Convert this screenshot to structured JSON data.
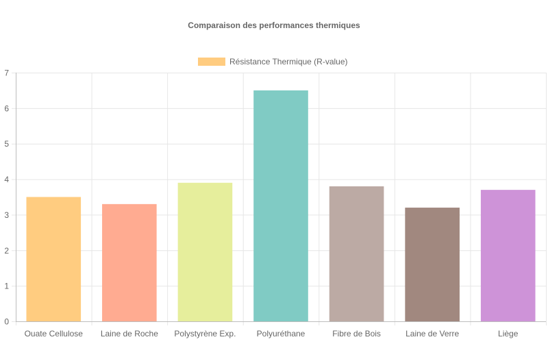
{
  "chart_data": {
    "type": "bar",
    "title": "Comparaison des performances thermiques",
    "categories": [
      "Ouate Cellulose",
      "Laine de Roche",
      "Polystyrène Exp.",
      "Polyuréthane",
      "Fibre de Bois",
      "Laine de Verre",
      "Liège"
    ],
    "series": [
      {
        "name": "Résistance Thermique (R-value)",
        "values": [
          3.5,
          3.3,
          3.9,
          6.5,
          3.8,
          3.2,
          3.7
        ]
      }
    ],
    "bar_colors": [
      "#ffcc80",
      "#ffab91",
      "#e6ee9c",
      "#80cbc4",
      "#bcaaa4",
      "#a1887f",
      "#ce93d8"
    ],
    "legend_color": "#ffcc80",
    "legend_position": "top",
    "ylim": [
      0,
      7
    ],
    "yticks": [
      0,
      1,
      2,
      3,
      4,
      5,
      6,
      7
    ],
    "grid": true,
    "xlabel": "",
    "ylabel": ""
  }
}
